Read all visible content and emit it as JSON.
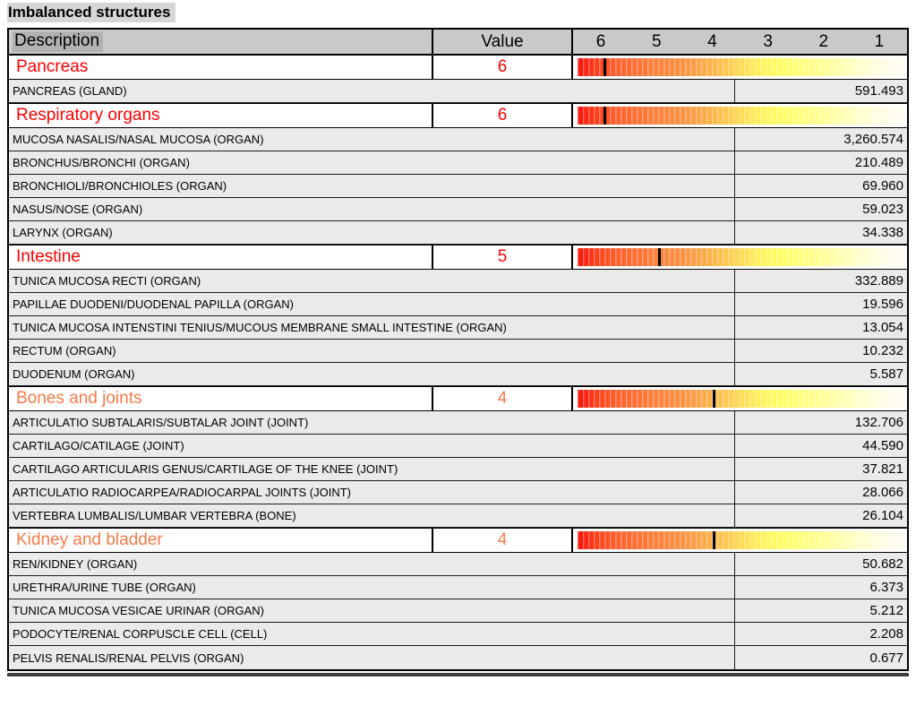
{
  "title": "Imbalanced structures",
  "table": {
    "headers": {
      "description": "Description",
      "value": "Value",
      "scale_ticks": [
        "6",
        "5",
        "4",
        "3",
        "2",
        "1"
      ]
    },
    "scale": {
      "min": 1,
      "max": 6
    },
    "colors": {
      "high_severity": "#ff0000",
      "medium_severity": "#f87b49"
    },
    "groups": [
      {
        "name": "Pancreas",
        "value": "6",
        "color": "#ff0000",
        "items": [
          {
            "label": "PANCREAS (GLAND)",
            "value": "591.493"
          }
        ]
      },
      {
        "name": "Respiratory organs",
        "value": "6",
        "color": "#ff0000",
        "items": [
          {
            "label": "MUCOSA NASALIS/NASAL MUCOSA (ORGAN)",
            "value": "3,260.574"
          },
          {
            "label": "BRONCHUS/BRONCHI (ORGAN)",
            "value": "210.489"
          },
          {
            "label": "BRONCHIOLI/BRONCHIOLES (ORGAN)",
            "value": "69.960"
          },
          {
            "label": "NASUS/NOSE (ORGAN)",
            "value": "59.023"
          },
          {
            "label": "LARYNX (ORGAN)",
            "value": "34.338"
          }
        ]
      },
      {
        "name": "Intestine",
        "value": "5",
        "color": "#ff0000",
        "items": [
          {
            "label": "TUNICA MUCOSA RECTI (ORGAN)",
            "value": "332.889"
          },
          {
            "label": "PAPILLAE DUODENI/DUODENAL PAPILLA (ORGAN)",
            "value": "19.596"
          },
          {
            "label": "TUNICA MUCOSA INTENSTINI TENIUS/MUCOUS MEMBRANE SMALL INTESTINE (ORGAN)",
            "value": "13.054"
          },
          {
            "label": "RECTUM (ORGAN)",
            "value": "10.232"
          },
          {
            "label": "DUODENUM (ORGAN)",
            "value": "5.587"
          }
        ]
      },
      {
        "name": "Bones and joints",
        "value": "4",
        "color": "#f87b49",
        "items": [
          {
            "label": "ARTICULATIO SUBTALARIS/SUBTALAR JOINT (JOINT)",
            "value": "132.706"
          },
          {
            "label": "CARTILAGO/CATILAGE (JOINT)",
            "value": "44.590"
          },
          {
            "label": "CARTILAGO ARTICULARIS GENUS/CARTILAGE OF THE KNEE (JOINT)",
            "value": "37.821"
          },
          {
            "label": "ARTICULATIO RADIOCARPEA/RADIOCARPAL JOINTS (JOINT)",
            "value": "28.066"
          },
          {
            "label": "VERTEBRA LUMBALIS/LUMBAR VERTEBRA (BONE)",
            "value": "26.104"
          }
        ]
      },
      {
        "name": "Kidney and bladder",
        "value": "4",
        "color": "#f87b49",
        "items": [
          {
            "label": "REN/KIDNEY (ORGAN)",
            "value": "50.682"
          },
          {
            "label": "URETHRA/URINE TUBE (ORGAN)",
            "value": "6.373"
          },
          {
            "label": "TUNICA MUCOSA VESICAE URINAR (ORGAN)",
            "value": "5.212"
          },
          {
            "label": "PODOCYTE/RENAL CORPUSCLE CELL (CELL)",
            "value": "2.208"
          },
          {
            "label": "PELVIS RENALIS/RENAL PELVIS (ORGAN)",
            "value": "0.677"
          }
        ]
      }
    ]
  }
}
